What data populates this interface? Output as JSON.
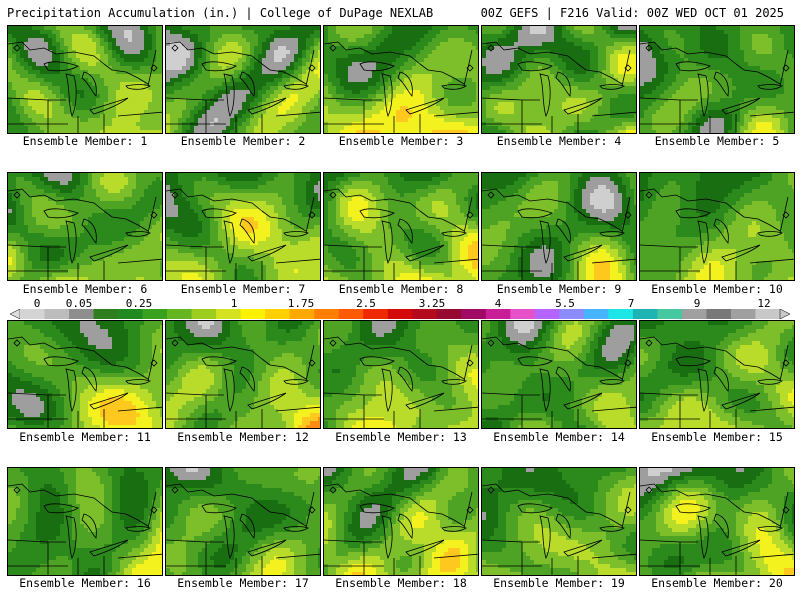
{
  "header": {
    "left": "Precipitation Accumulation (in.) | College of DuPage NEXLAB",
    "right": "00Z GEFS | F216 Valid: 00Z WED OCT 01 2025"
  },
  "colorbar": {
    "labels": [
      "0",
      "0.05",
      "0.25",
      "1",
      "1.75",
      "2.5",
      "3.25",
      "4",
      "5.5",
      "7",
      "9",
      "12"
    ],
    "colors": [
      "#d4d4d4",
      "#bcbcbc",
      "#8e8e8e",
      "#2e7d1f",
      "#1f8a1f",
      "#3aa11f",
      "#64b51f",
      "#9ccd1f",
      "#d4e21f",
      "#fff200",
      "#ffd000",
      "#ffa800",
      "#ff8000",
      "#ff5a00",
      "#f02a00",
      "#d20a0a",
      "#b40a1e",
      "#960a32",
      "#a00a64",
      "#c81e96",
      "#e650c8",
      "#b464ff",
      "#8c8cff",
      "#46b4ff",
      "#1ee6e6",
      "#1eb4b4",
      "#46c8a0",
      "#a0a0a0",
      "#787878",
      "#a0a0a0",
      "#c8c8c8"
    ]
  },
  "panels": [
    {
      "label": "Ensemble Member: 1",
      "heavy": 0.6
    },
    {
      "label": "Ensemble Member: 2",
      "heavy": 0.3
    },
    {
      "label": "Ensemble Member: 3",
      "heavy": 0.9
    },
    {
      "label": "Ensemble Member: 4",
      "heavy": 0.5
    },
    {
      "label": "Ensemble Member: 5",
      "heavy": 0.3
    },
    {
      "label": "Ensemble Member: 6",
      "heavy": 0.6
    },
    {
      "label": "Ensemble Member: 7",
      "heavy": 0.7
    },
    {
      "label": "Ensemble Member: 8",
      "heavy": 0.75
    },
    {
      "label": "Ensemble Member: 9",
      "heavy": 0.3
    },
    {
      "label": "Ensemble Member: 10",
      "heavy": 0.6
    },
    {
      "label": "Ensemble Member: 11",
      "heavy": 0.6
    },
    {
      "label": "Ensemble Member: 12",
      "heavy": 0.7
    },
    {
      "label": "Ensemble Member: 13",
      "heavy": 0.75
    },
    {
      "label": "Ensemble Member: 14",
      "heavy": 0.35
    },
    {
      "label": "Ensemble Member: 15",
      "heavy": 0.6
    },
    {
      "label": "Ensemble Member: 16",
      "heavy": 0.5
    },
    {
      "label": "Ensemble Member: 17",
      "heavy": 0.4
    },
    {
      "label": "Ensemble Member: 18",
      "heavy": 0.8
    },
    {
      "label": "Ensemble Member: 19",
      "heavy": 0.55
    },
    {
      "label": "Ensemble Member: 20",
      "heavy": 0.65
    }
  ]
}
